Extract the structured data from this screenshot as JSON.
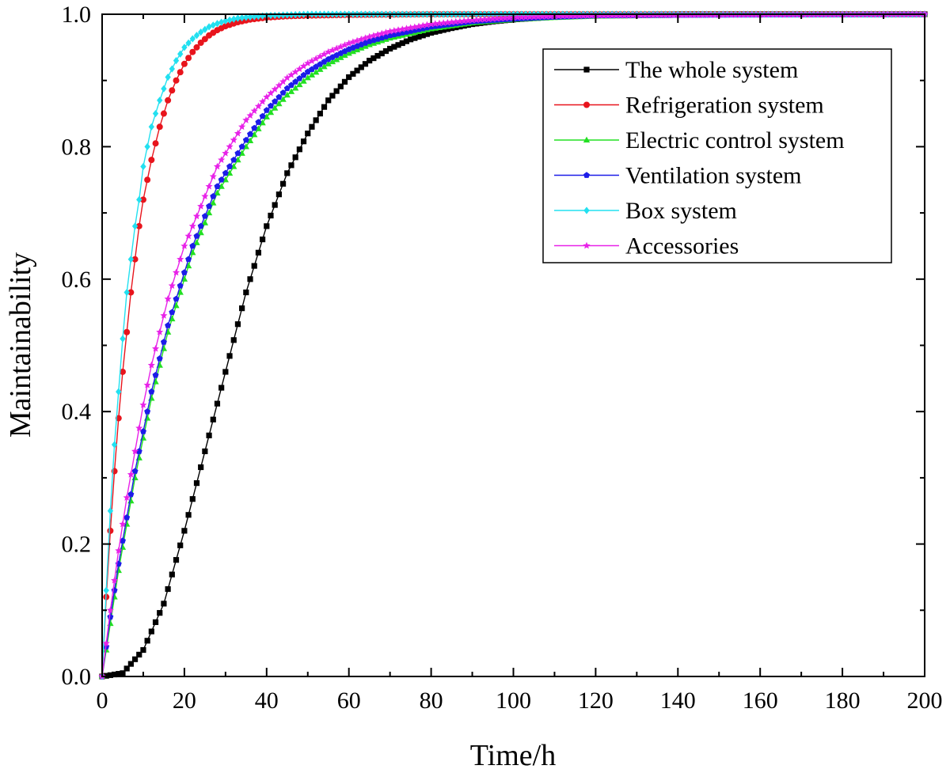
{
  "chart_data": {
    "type": "line",
    "title": "",
    "xlabel": "Time/h",
    "ylabel": "Maintainability",
    "xlim": [
      0,
      200
    ],
    "ylim": [
      0,
      1.0
    ],
    "x_ticks": [
      0,
      20,
      40,
      60,
      80,
      100,
      120,
      140,
      160,
      180,
      200
    ],
    "x_tick_labels": [
      "0",
      "20",
      "40",
      "60",
      "80",
      "100",
      "120",
      "140",
      "160",
      "180",
      "200"
    ],
    "y_ticks": [
      0.0,
      0.2,
      0.4,
      0.6,
      0.8,
      1.0
    ],
    "y_tick_labels": [
      "0.0",
      "0.2",
      "0.4",
      "0.6",
      "0.8",
      "1.0"
    ],
    "grid": false,
    "legend_position": "top-right",
    "marker_interval_h": 1,
    "series": [
      {
        "name": "The whole system",
        "color": "#000000",
        "marker": "square",
        "x": [
          0,
          5,
          10,
          15,
          20,
          25,
          30,
          35,
          40,
          45,
          50,
          55,
          60,
          65,
          70,
          75,
          80,
          85,
          90,
          95,
          100,
          110,
          120,
          130,
          140,
          150,
          160,
          170,
          180,
          190,
          200
        ],
        "y": [
          0.0,
          0.005,
          0.04,
          0.11,
          0.22,
          0.34,
          0.46,
          0.58,
          0.68,
          0.76,
          0.82,
          0.87,
          0.905,
          0.93,
          0.948,
          0.962,
          0.972,
          0.979,
          0.985,
          0.989,
          0.992,
          0.996,
          0.998,
          0.999,
          1.0,
          1.0,
          1.0,
          1.0,
          1.0,
          1.0,
          1.0
        ]
      },
      {
        "name": "Refrigeration system",
        "color": "#e8141c",
        "marker": "circle",
        "x": [
          0,
          1,
          2,
          3,
          4,
          5,
          6,
          7,
          8,
          9,
          10,
          12,
          14,
          16,
          18,
          20,
          22,
          24,
          26,
          28,
          30,
          33,
          36,
          40,
          45,
          50,
          60,
          80,
          100,
          150,
          200
        ],
        "y": [
          0.0,
          0.12,
          0.22,
          0.31,
          0.39,
          0.46,
          0.52,
          0.58,
          0.63,
          0.68,
          0.72,
          0.78,
          0.83,
          0.87,
          0.9,
          0.925,
          0.943,
          0.957,
          0.968,
          0.976,
          0.982,
          0.988,
          0.992,
          0.995,
          0.997,
          0.998,
          0.999,
          1.0,
          1.0,
          1.0,
          1.0
        ]
      },
      {
        "name": "Electric control system",
        "color": "#22e022",
        "marker": "triangle",
        "x": [
          0,
          2,
          4,
          6,
          8,
          10,
          12,
          14,
          16,
          18,
          20,
          22,
          24,
          26,
          28,
          30,
          35,
          40,
          45,
          50,
          55,
          60,
          65,
          70,
          80,
          90,
          100,
          110,
          120,
          150,
          200
        ],
        "y": [
          0.0,
          0.08,
          0.16,
          0.23,
          0.3,
          0.36,
          0.42,
          0.47,
          0.52,
          0.56,
          0.6,
          0.64,
          0.67,
          0.7,
          0.73,
          0.75,
          0.8,
          0.845,
          0.878,
          0.904,
          0.925,
          0.941,
          0.954,
          0.964,
          0.978,
          0.987,
          0.992,
          0.995,
          0.997,
          0.999,
          1.0
        ]
      },
      {
        "name": "Ventilation system",
        "color": "#1c1ce8",
        "marker": "pentagon",
        "x": [
          0,
          2,
          4,
          6,
          8,
          10,
          12,
          14,
          16,
          18,
          20,
          22,
          24,
          26,
          28,
          30,
          35,
          40,
          45,
          50,
          55,
          60,
          65,
          70,
          80,
          90,
          100,
          110,
          120,
          150,
          200
        ],
        "y": [
          0.0,
          0.09,
          0.17,
          0.24,
          0.31,
          0.37,
          0.43,
          0.48,
          0.53,
          0.57,
          0.61,
          0.65,
          0.68,
          0.71,
          0.74,
          0.76,
          0.81,
          0.855,
          0.888,
          0.913,
          0.932,
          0.947,
          0.959,
          0.968,
          0.981,
          0.989,
          0.993,
          0.996,
          0.998,
          0.999,
          1.0
        ]
      },
      {
        "name": "Box system",
        "color": "#22e0f0",
        "marker": "diamond",
        "x": [
          0,
          1,
          2,
          3,
          4,
          5,
          6,
          7,
          8,
          9,
          10,
          12,
          14,
          16,
          18,
          20,
          22,
          24,
          26,
          28,
          30,
          33,
          36,
          40,
          45,
          50,
          60,
          80,
          100,
          150,
          200
        ],
        "y": [
          0.0,
          0.13,
          0.25,
          0.35,
          0.43,
          0.51,
          0.58,
          0.63,
          0.68,
          0.72,
          0.77,
          0.83,
          0.87,
          0.905,
          0.93,
          0.95,
          0.963,
          0.973,
          0.981,
          0.986,
          0.99,
          0.994,
          0.996,
          0.998,
          0.999,
          1.0,
          1.0,
          1.0,
          1.0,
          1.0,
          1.0
        ]
      },
      {
        "name": "Accessories",
        "color": "#e822e8",
        "marker": "star",
        "x": [
          0,
          2,
          4,
          6,
          8,
          10,
          12,
          14,
          16,
          18,
          20,
          22,
          24,
          26,
          28,
          30,
          35,
          40,
          45,
          50,
          55,
          60,
          65,
          70,
          80,
          90,
          100,
          110,
          120,
          150,
          200
        ],
        "y": [
          0.0,
          0.1,
          0.19,
          0.27,
          0.34,
          0.41,
          0.47,
          0.52,
          0.57,
          0.61,
          0.65,
          0.68,
          0.71,
          0.74,
          0.77,
          0.79,
          0.84,
          0.875,
          0.904,
          0.926,
          0.943,
          0.956,
          0.966,
          0.974,
          0.985,
          0.991,
          0.995,
          0.997,
          0.998,
          0.999,
          1.0
        ]
      }
    ]
  }
}
